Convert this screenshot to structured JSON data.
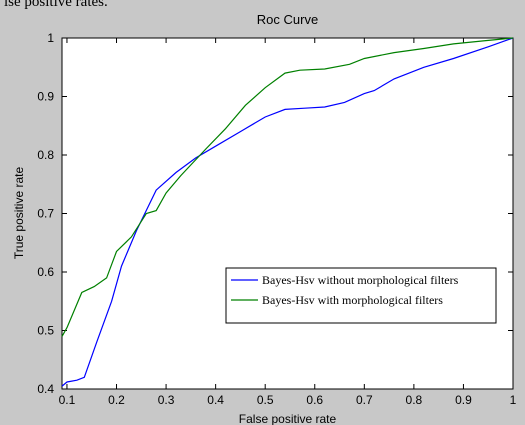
{
  "top_text": "lse positive rates.",
  "chart_data": {
    "type": "line",
    "title": "Roc Curve",
    "xlabel": "False positive rate",
    "ylabel": "True positive rate",
    "xlim": [
      0.09,
      1.0
    ],
    "ylim": [
      0.4,
      1.0
    ],
    "xticks": [
      0.1,
      0.2,
      0.3,
      0.4,
      0.5,
      0.6,
      0.7,
      0.8,
      0.9,
      1
    ],
    "xtick_labels": [
      "0.1",
      "0.2",
      "0.3",
      "0.4",
      "0.5",
      "0.6",
      "0.7",
      "0.8",
      "0.9",
      "1"
    ],
    "yticks": [
      0.4,
      0.5,
      0.6,
      0.7,
      0.8,
      0.9,
      1
    ],
    "ytick_labels": [
      "0.4",
      "0.5",
      "0.6",
      "0.7",
      "0.8",
      "0.9",
      "1"
    ],
    "grid": false,
    "legend_position": "lower-right",
    "series": [
      {
        "name": "Bayes-Hsv without morphological filters",
        "color": "#0000ff",
        "x": [
          0.09,
          0.1,
          0.12,
          0.135,
          0.16,
          0.19,
          0.21,
          0.24,
          0.28,
          0.32,
          0.36,
          0.4,
          0.45,
          0.5,
          0.54,
          0.58,
          0.62,
          0.66,
          0.7,
          0.72,
          0.76,
          0.82,
          0.88,
          0.95,
          1.0
        ],
        "y": [
          0.405,
          0.412,
          0.415,
          0.42,
          0.48,
          0.55,
          0.61,
          0.67,
          0.74,
          0.77,
          0.795,
          0.815,
          0.84,
          0.865,
          0.878,
          0.88,
          0.882,
          0.89,
          0.905,
          0.91,
          0.93,
          0.95,
          0.965,
          0.985,
          1.0
        ]
      },
      {
        "name": "Bayes-Hsv with morphological filters",
        "color": "#008000",
        "x": [
          0.09,
          0.1,
          0.13,
          0.155,
          0.18,
          0.2,
          0.23,
          0.26,
          0.28,
          0.3,
          0.33,
          0.38,
          0.42,
          0.46,
          0.5,
          0.54,
          0.57,
          0.62,
          0.67,
          0.7,
          0.76,
          0.82,
          0.88,
          0.94,
          1.0
        ],
        "y": [
          0.49,
          0.505,
          0.565,
          0.575,
          0.59,
          0.635,
          0.66,
          0.7,
          0.705,
          0.735,
          0.765,
          0.81,
          0.845,
          0.885,
          0.915,
          0.94,
          0.945,
          0.947,
          0.955,
          0.965,
          0.975,
          0.982,
          0.99,
          0.995,
          1.0
        ]
      }
    ]
  }
}
